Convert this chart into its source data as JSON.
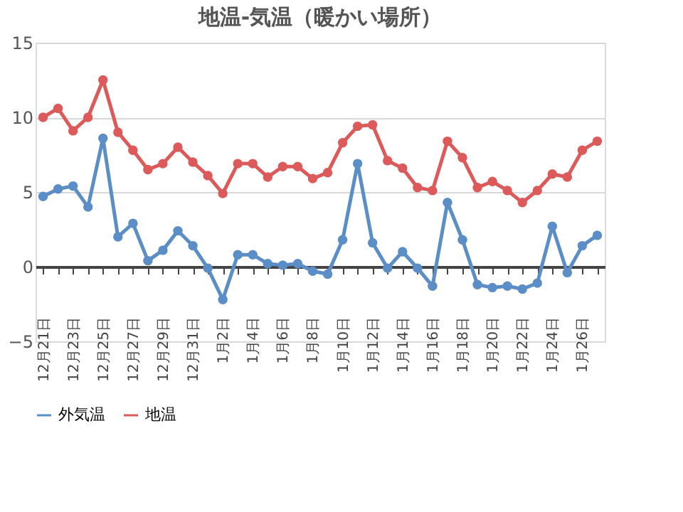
{
  "chart_data": {
    "type": "line",
    "title": "地温-気温（暖かい場所）",
    "categories": [
      "12月21日",
      null,
      "12月23日",
      null,
      "12月25日",
      null,
      "12月27日",
      null,
      "12月29日",
      null,
      "12月31日",
      null,
      "1月2日",
      null,
      "1月4日",
      null,
      "1月6日",
      null,
      "1月8日",
      null,
      "1月10日",
      null,
      "1月12日",
      null,
      "1月14日",
      null,
      "1月16日",
      null,
      "1月18日",
      null,
      "1月20日",
      null,
      "1月22日",
      null,
      "1月24日",
      null,
      "1月26日",
      null
    ],
    "series": [
      {
        "name": "外気温",
        "color": "#5b8ec6",
        "values": [
          4.7,
          5.2,
          5.4,
          4.0,
          8.6,
          2.0,
          2.9,
          0.4,
          1.1,
          2.4,
          1.4,
          -0.1,
          -2.2,
          0.8,
          0.8,
          0.2,
          0.1,
          0.2,
          -0.3,
          -0.5,
          1.8,
          6.9,
          1.6,
          -0.1,
          1.0,
          -0.1,
          -1.3,
          4.3,
          1.8,
          -1.2,
          -1.4,
          -1.3,
          -1.5,
          -1.1,
          2.7,
          -0.4,
          1.4,
          2.1
        ]
      },
      {
        "name": "地温",
        "color": "#dc5a5a",
        "values": [
          10.0,
          10.6,
          9.1,
          10.0,
          12.5,
          9.0,
          7.8,
          6.5,
          6.9,
          8.0,
          7.0,
          6.1,
          4.9,
          6.9,
          6.9,
          6.0,
          6.7,
          6.7,
          5.9,
          6.3,
          8.3,
          9.4,
          9.5,
          7.1,
          6.6,
          5.3,
          5.1,
          8.4,
          7.3,
          5.3,
          5.7,
          5.1,
          4.3,
          5.1,
          6.2,
          6.0,
          7.8,
          8.4
        ]
      }
    ],
    "ylim": [
      -5,
      15
    ],
    "yticks": [
      -5,
      0,
      5,
      10,
      15
    ],
    "grid": "y",
    "legend": "bottom",
    "marker": "circle",
    "line_style": "solid"
  }
}
